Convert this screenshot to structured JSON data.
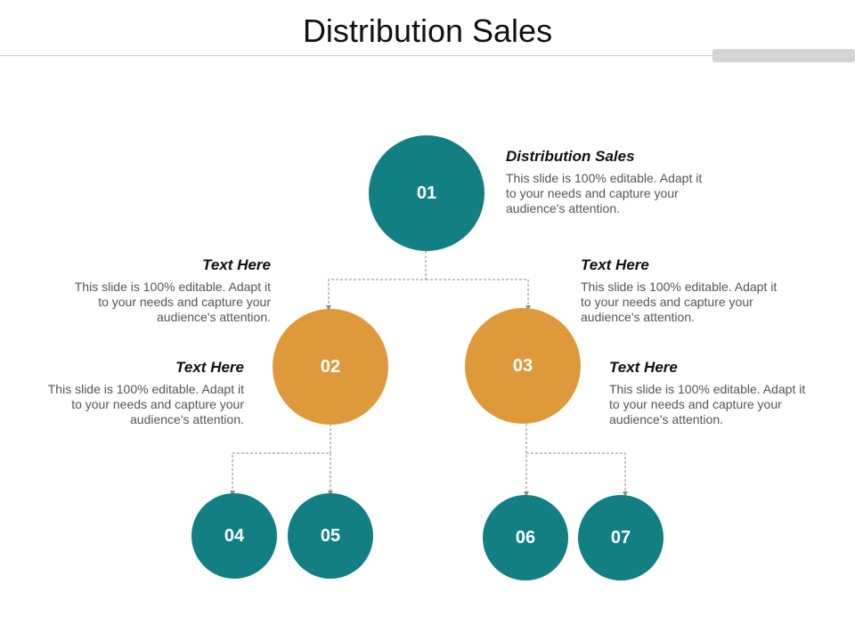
{
  "slide": {
    "title": "Distribution Sales"
  },
  "nodes": {
    "n01": "01",
    "n02": "02",
    "n03": "03",
    "n04": "04",
    "n05": "05",
    "n06": "06",
    "n07": "07"
  },
  "callouts": {
    "top": {
      "heading": "Distribution Sales",
      "body": "This slide is 100% editable. Adapt it to your needs and capture your audience's attention."
    },
    "upper_left": {
      "heading": "Text Here",
      "body": "This slide is 100% editable. Adapt it to your needs and capture your audience's attention."
    },
    "upper_right": {
      "heading": "Text Here",
      "body": "This slide is 100% editable. Adapt it to your needs and capture your audience's attention."
    },
    "lower_left": {
      "heading": "Text Here",
      "body": "This slide is 100% editable. Adapt it to your needs and capture your audience's attention."
    },
    "lower_right": {
      "heading": "Text Here",
      "body": "This slide is 100% editable. Adapt it to your needs and capture your audience's attention."
    }
  },
  "colors": {
    "teal": "#127f83",
    "orange": "#de9a3a",
    "connector": "#8a8a8a"
  }
}
